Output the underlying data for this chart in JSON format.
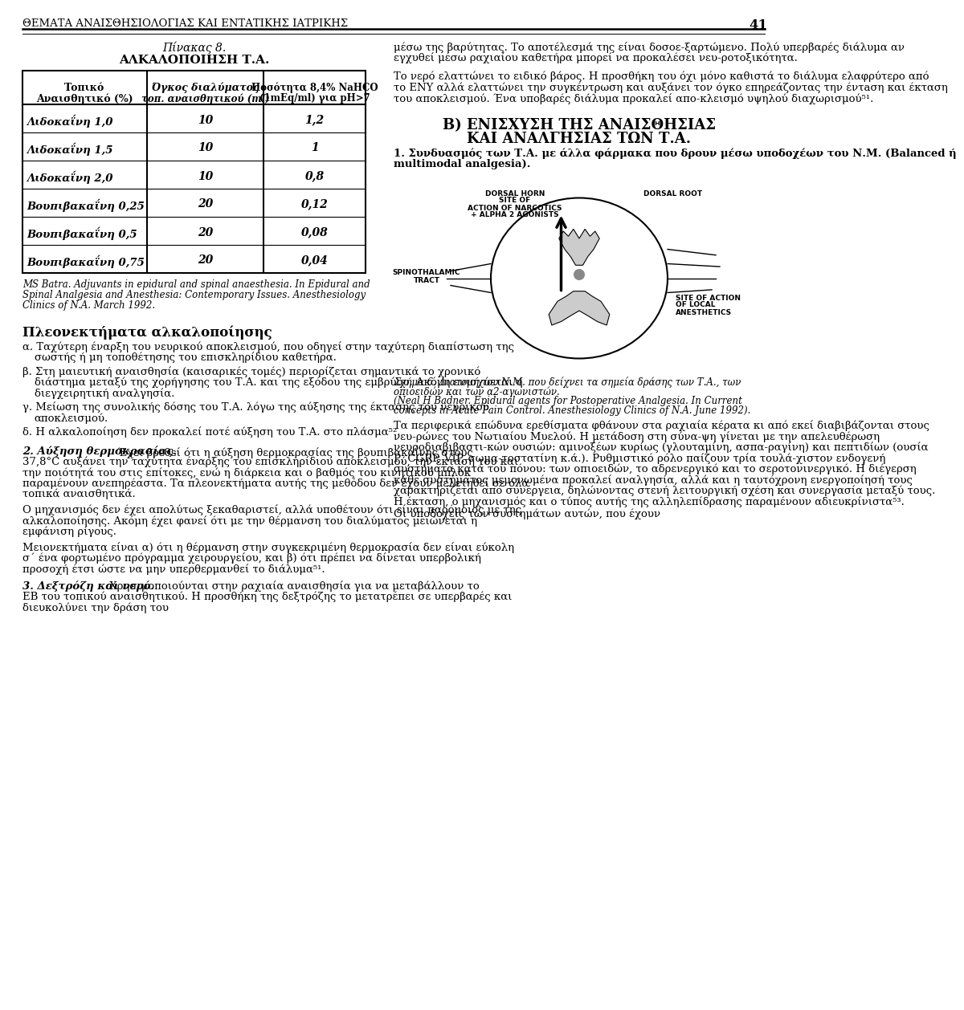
{
  "bg_color": "#ffffff",
  "header_text": "ΘΕΜΑΤΑ ΑΝΑΙΣΘΗΣΙΟΛΟΓΙΑΣ ΚΑΙ ΕΝΤΑΤΙΚΗΣ ΙΑΤΡΙΚΗΣ",
  "page_number": "41",
  "table_title_italic": "Πίνακας 8.",
  "table_title_bold": "ΑΛΚΑΛΟΠΟΙΗΣΗ Τ.Α.",
  "col_header1_line1": "Τοπικό",
  "col_header1_line2": "Αναισθητικό (%)",
  "col_header2_line1": "Όγκος διαλύματος",
  "col_header2_line2": "τοπ. αναισθητικού (ml)",
  "col_header3_line1": "Ποσότητα 8,4% NaHCO",
  "col_header3_sub": "3",
  "col_header3_line2": "(1mEq/ml) για pH>7",
  "rows": [
    [
      "Λιδοκαΐνη 1,0",
      "10",
      "1,2"
    ],
    [
      "Λιδοκαΐνη 1,5",
      "10",
      "1"
    ],
    [
      "Λιδοκαΐνη 2,0",
      "10",
      "0,8"
    ],
    [
      "Βουπιβακαΐνη 0,25",
      "20",
      "0,12"
    ],
    [
      "Βουπιβακαΐνη 0,5",
      "20",
      "0,08"
    ],
    [
      "Βουπιβακαΐνη 0,75",
      "20",
      "0,04"
    ]
  ],
  "table_footnote_lines": [
    "MS Batra. Adjuvants in epidural and spinal anaesthesia. In Epidural and",
    "Spinal Analgesia and Anesthesia: Contemporary Issues. Anesthesiology",
    "Clinics of N.A. March 1992."
  ],
  "left_section_title": "Πλεονεκτήματα αλκαλοποίησης",
  "left_items": [
    [
      "α.",
      "Ταχύτερη έναρξη του νευρικού αποκλεισμού, που οδηγεί στην ταχύτερη διαπίστωση της σωστής ή μη τοποθέτησης του επισκληρίδιου καθετήρα."
    ],
    [
      "β.",
      "Στη μαιευτική αναισθησία (καισαρικές τομές) περιορίζεται σημαντικά το χρονικό διάστημα μεταξύ της χορήγησης του Τ.Α. και της εξόδου της εμβρύου. Ακόμη ενισχύεται η διεγχειρητική αναλγησία."
    ],
    [
      "γ.",
      "Μείωση της συνολικής δόσης του Τ.Α. λόγω της αύξησης της έκτασης του νευρικού αποκλεισμού."
    ],
    [
      "δ.",
      "Η αλκαλοποίηση δεν προκαλεί ποτέ αύξηση του Τ.Α. στο πλάσμα⁵²."
    ]
  ],
  "sec2_bold": "2. Αύξηση θερμοκρασίας.",
  "sec2_rest": " Έχει βρεθεί ότι η αύξηση θερμοκρασίας της βουπιβακαΐνης στους 37,8°C αυξάνει την ταχύτητα έναρξης του επισκληρίδιου αποκλεισμού, την έκταση του και την ποιότητά του στις επίτοκες, ενώ η διάρκεια και ο βαθμός του κινητικού μπλοκ παραμένουν ανεπηρέαστα. Τα πλεονεκτήματα αυτής της μεθόδου δεν έχουν μελετηθεί σε όλα τοπικά αναισθητικά.",
  "sec2_para2": "    Ο μηχανισμός δεν έχει απολύτως ξεκαθαριστεί, αλλά υποθέτουν ότι είναι παρόμοιος με της αλκαλοποίησης. Ακόμη έχει φανεί ότι με την θέρμανση του διαλύματος μειώνεται η εμφάνιση ρίγους.",
  "sec2_para3": "    Μειονεκτήματα είναι α) ότι η θέρμανση στην συγκεκριμένη θερμοκρασία δεν είναι εύκολη σ΄ ένα φορτωμένο πρόγραμμα χειρουργείου, και β) ότι πρέπει να δίνεται υπερβολική προσοχή έτσι ώστε να μην υπερθερμανθεί το διάλυμα⁵¹.",
  "sec3_bold": "3. Δεξτρόζη και νερό.",
  "sec3_rest": " Χρησιμοποιούνται στην ραχιαία αναισθησία για να μεταβάλλουν το ΕΒ του τοπικού αναισθητικού. Η προσθήκη της δεξτρόζης το μετατρέπει σε υπερβαρές και διευκολύνει την δράση του",
  "right_para1": "μέσω της βαρύτητας. Το αποτέλεσμά της είναι δοσοε-ξαρτώμενο. Πολύ υπερβαρές διάλυμα αν εγχυθεί μέσω ραχιαίου καθετήρα μπορεί να προκαλέσει νευ-ροτοξικότητα.",
  "right_para2": "    Το νερό ελαττώνει το ειδικό βάρος. Η προσθήκη του όχι μόνο καθιστά το διάλυμα ελαφρύτερο από το ΕΝΥ αλλά ελαττώνει την συγκέντρωση και αυξάνει τον όγκο επηρεάζοντας την έντaση και έκταση του αποκλεισμού. Ένα υποβαρές διάλυμα προκαλεί απο-κλεισμό υψηλού διαχωρισμού⁵¹.",
  "right_B_title": "Β) ΕΝΙΣΧΥΣΗ ΤΗΣ ΑΝΑΙΣΘΗΣΙΑΣ",
  "right_B_title2": "ΚΑΙ ΑΝΑΛΓΗΣΙΑΣ ΤΩΝ Τ.Α.",
  "right_sec1_bold": "1. Συνδυασμός των Τ.Α. με άλλα φάρμακα που δρουν μέσω υποδοχέων του Ν.Μ. (Balanced ή multimodal analgesia).",
  "fig_caption1": "Σχήμα 6. Διατομή του Ν.Μ. που δείχνει τα σημεία δράσης των Τ.Α., των",
  "fig_caption2": "οπιοειδών και των α2-αγωνιστών.",
  "fig_caption3": "(Neal H Badner. Epidural agents for Postoperative Analgesia. In Current",
  "fig_caption4": "concepts in Acute Pain Control. Anesthesiology Clinics of N.A. June 1992).",
  "right_bottom_text": "    Τα περιφερικά επώδυνα ερεθίσματα φθάνουν στα ραχιαία κέρατα κι από εκεί διαβιβάζονται στους νευ-ρώνες του Νωτιαίου Μυελού. Η μετάδοση στη σύνα-ψη γίνεται με την απελευθέρωση νευροδιαβιβαστι-κών ουσιών: αμινοξέων κυρίως (γλουταμίνη, ασπα-ραγίνη) και πεπτιδίων (ουσία Ρ, CGRP, VIP, σωμα-τοστατίνη κ.ά.). Ρυθμιστικό ρόλο παίζουν τρία τουλά-χιστον ενδογενή συστήματα κατά του πόνου: των οπιοειδών, το αδρενεργικό και το σεροτονινεργικό. Η διέγερση κάθε συστήματος μεμονωμένα προκαλεί αναλγησία, αλλά και η ταυτόχρονη ενεργοποίησή τους χαρακτηρίζεται από συνέργεια, δηλώνοντας στενή λειτουργική σχέση και συνεργασία μεταξύ τους. Η έκταση, ο μηχανισμός και ο τύπος αυτής της αλληλεπίδρασης παραμένουν αδιευκρίνιστα⁵³.",
  "right_bottom_text2": "    Οι υποδοχείς των συστημάτων αυτών, που έχουν"
}
